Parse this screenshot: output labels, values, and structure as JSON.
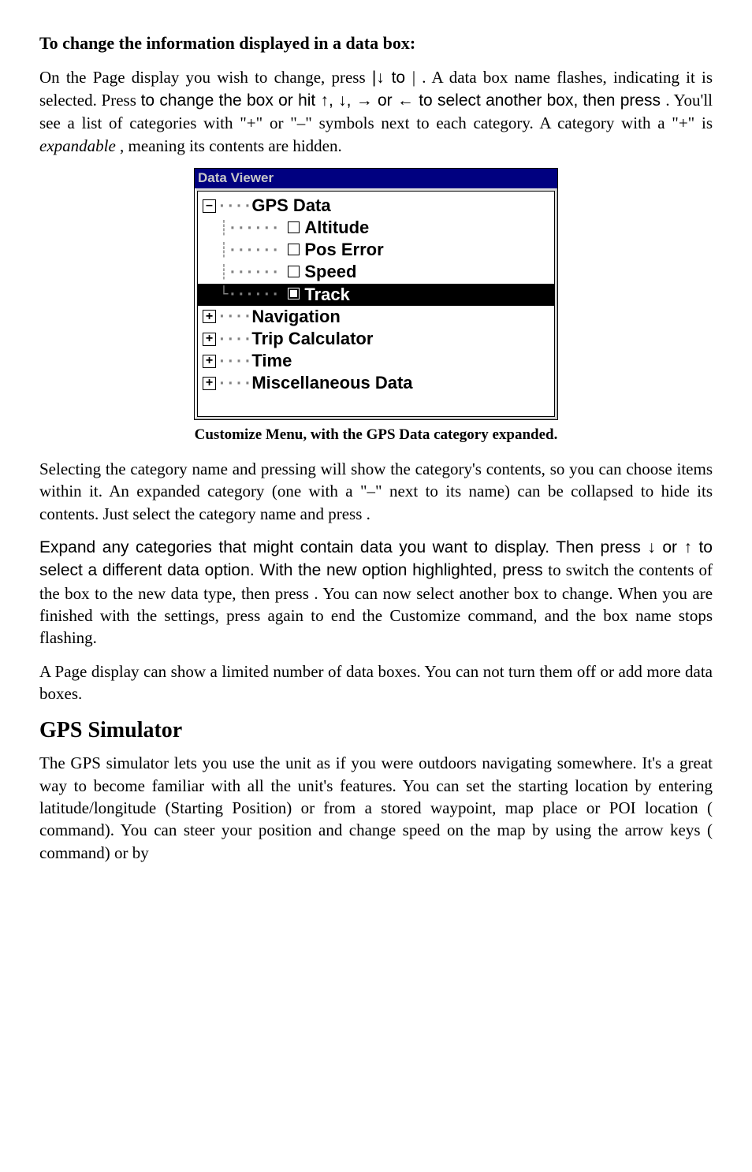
{
  "heading1": "To change the information displayed in a data box:",
  "para1_a": "On the Page display you wish to change, press ",
  "para1_b": "|↓ to ",
  "para1_c": "|",
  "para1_d": ". A data box name flashes, indicating it is selected. Press ",
  "para1_e": " to change the box or hit ↑, ↓, → or ← to select another box, then press ",
  "para1_f": ". You'll see a list of categories with \"+\" or \"–\" symbols next to each category. A category with a \"+\" is ",
  "para1_expandable": "expandable",
  "para1_g": ", meaning its contents are hidden.",
  "dataviewer": {
    "title": "Data Viewer",
    "root": {
      "label": "GPS Data",
      "children": [
        {
          "label": "Altitude",
          "checked": false
        },
        {
          "label": "Pos Error",
          "checked": false
        },
        {
          "label": "Speed",
          "checked": false
        },
        {
          "label": "Track",
          "checked": true,
          "selected": true
        }
      ]
    },
    "siblings": [
      {
        "label": "Navigation"
      },
      {
        "label": "Trip Calculator"
      },
      {
        "label": "Time"
      },
      {
        "label": "Miscellaneous Data"
      }
    ],
    "colors": {
      "titlebar_bg": "#000080",
      "titlebar_fg": "#c8c8c8",
      "frame_bg": "#dedede",
      "body_bg": "#ffffff",
      "selection_bg": "#000000",
      "selection_fg": "#ffffff",
      "connector": "#808080"
    },
    "font_family": "Arial",
    "font_weight": "bold",
    "font_size_pt": 16
  },
  "caption": "Customize Menu, with the GPS Data category expanded.",
  "para2_a": "Selecting the category name and pressing ",
  "para2_b": " will show the category's contents, so you can choose items within it. An expanded category (one with a \"–\" next to its name) can be collapsed to hide its contents. Just select the category name and press ",
  "para2_c": ".",
  "para3_a": "Expand any categories that might contain data you want to display. Then press ↓ or ↑ to select a different data option. With the new option highlighted, press ",
  "para3_b": " to switch the contents of the box to the new data type, then press ",
  "para3_c": ". You can now select another box to change. When you are finished with the settings, press ",
  "para3_d": " again to end the Custom­ize command, and the box name stops flashing.",
  "para4": "A Page display can show a limited number of data boxes. You can not turn them off or add more data boxes.",
  "h2": "GPS Simulator",
  "para5_a": "The GPS simulator lets you use the unit as if you were outdoors navi­gating somewhere. It's a great way to become familiar with all the unit's features. You can set the starting location by entering latitude/longitude (Starting Position) or from a stored waypoint, map place or POI location (",
  "para5_b": " command). You can steer your position and change speed on the map by using the arrow keys (",
  "para5_c": " command) or by"
}
